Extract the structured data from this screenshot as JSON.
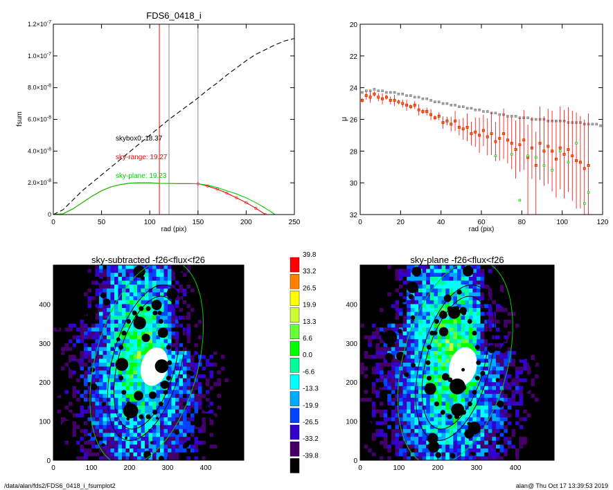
{
  "chart_data": [
    {
      "type": "line",
      "title": "FDS6_0418_i",
      "xlabel": "rad (pix)",
      "ylabel": "fsum",
      "xlim": [
        0,
        250
      ],
      "ylim": [
        0,
        1.2e-07
      ],
      "x_ticks": [
        "0",
        "50",
        "100",
        "150",
        "200",
        "250"
      ],
      "y_ticks": [
        {
          "base": "0",
          "exp": ""
        },
        {
          "base": "2.0×10",
          "exp": "-8"
        },
        {
          "base": "4.0×10",
          "exp": "-8"
        },
        {
          "base": "6.0×10",
          "exp": "-8"
        },
        {
          "base": "8.0×10",
          "exp": "-8"
        },
        {
          "base": "1.0×10",
          "exp": "-7"
        },
        {
          "base": "1.2×10",
          "exp": "-7"
        }
      ],
      "vlines": [
        {
          "x": 110,
          "color": "#ff0000"
        },
        {
          "x": 120,
          "color": "#888888"
        },
        {
          "x": 150,
          "color": "#888888"
        }
      ],
      "annotations": [
        {
          "text": "skybox0: 18.37",
          "color": "#000000"
        },
        {
          "text": "sky-range: 19.27",
          "color": "#ff0000"
        },
        {
          "text": "sky-plane: 19.23",
          "color": "#00cc00"
        }
      ],
      "series": [
        {
          "style": "dashed",
          "color": "#000000",
          "x": [
            0,
            10,
            20,
            30,
            40,
            50,
            60,
            70,
            80,
            90,
            100,
            110,
            120,
            130,
            140,
            150,
            160,
            170,
            180,
            190,
            200,
            210,
            220,
            230,
            240,
            250
          ],
          "y": [
            0,
            3e-09,
            9e-09,
            1.5e-08,
            2e-08,
            2.5e-08,
            3e-08,
            3.5e-08,
            4e-08,
            4.5e-08,
            5e-08,
            5.5e-08,
            6e-08,
            6.45e-08,
            6.9e-08,
            7.35e-08,
            7.85e-08,
            8.3e-08,
            8.8e-08,
            9.25e-08,
            9.7e-08,
            1.01e-07,
            1.04e-07,
            1.07e-07,
            1.095e-07,
            1.11e-07
          ]
        },
        {
          "style": "solid",
          "color": "#ff0000",
          "x": [
            0,
            10,
            20,
            30,
            40,
            50,
            60,
            70,
            80,
            90,
            100,
            110,
            120,
            130,
            140,
            150,
            160,
            170,
            180,
            190,
            200,
            210,
            220
          ],
          "y": [
            0,
            5e-10,
            3.5e-09,
            7.5e-09,
            1.15e-08,
            1.5e-08,
            1.75e-08,
            1.9e-08,
            1.98e-08,
            2e-08,
            2e-08,
            1.97e-08,
            1.96e-08,
            1.95e-08,
            1.95e-08,
            1.94e-08,
            1.8e-08,
            1.6e-08,
            1.35e-08,
            1.05e-08,
            7.5e-09,
            4e-09,
            0.0
          ]
        },
        {
          "style": "solid",
          "color": "#00cc00",
          "x": [
            0,
            10,
            20,
            30,
            40,
            50,
            60,
            70,
            80,
            90,
            100,
            110,
            120,
            130,
            140,
            150,
            160,
            170,
            180,
            190,
            200,
            210,
            220,
            230
          ],
          "y": [
            0,
            5e-10,
            3.5e-09,
            7.5e-09,
            1.15e-08,
            1.5e-08,
            1.75e-08,
            1.9e-08,
            1.98e-08,
            2e-08,
            2e-08,
            1.97e-08,
            1.96e-08,
            1.95e-08,
            1.95e-08,
            1.94e-08,
            1.85e-08,
            1.7e-08,
            1.5e-08,
            1.3e-08,
            1.05e-08,
            7.5e-09,
            4e-09,
            0.0
          ]
        }
      ]
    },
    {
      "type": "scatter",
      "xlabel": "rad (pix)",
      "ylabel": "μ",
      "xlim": [
        0,
        120
      ],
      "ylim": [
        32,
        20
      ],
      "x_ticks": [
        "0",
        "20",
        "40",
        "60",
        "80",
        "100",
        "120"
      ],
      "y_ticks": [
        "20",
        "22",
        "24",
        "26",
        "28",
        "30",
        "32"
      ],
      "series": [
        {
          "color": "#777777",
          "x": [
            1,
            3,
            5,
            7,
            9,
            11,
            13,
            15,
            17,
            19,
            21,
            23,
            25,
            27,
            29,
            31,
            33,
            35,
            37,
            39,
            41,
            43,
            45,
            47,
            49,
            51,
            53,
            55,
            57,
            59,
            61,
            63,
            65,
            67,
            69,
            71,
            73,
            75,
            77,
            79,
            81,
            83,
            85,
            87,
            89,
            91,
            93,
            95,
            97,
            99,
            101,
            103,
            105,
            107,
            109,
            111,
            113,
            115,
            117,
            119
          ],
          "y": [
            24.3,
            24.2,
            24.2,
            24.1,
            24.2,
            24.2,
            24.3,
            24.3,
            24.3,
            24.4,
            24.4,
            24.5,
            24.5,
            24.6,
            24.6,
            24.7,
            24.7,
            24.8,
            24.9,
            24.9,
            25.0,
            25.0,
            25.1,
            25.1,
            25.2,
            25.2,
            25.3,
            25.3,
            25.4,
            25.4,
            25.5,
            25.5,
            25.6,
            25.6,
            25.7,
            25.7,
            25.8,
            25.8,
            25.8,
            25.9,
            25.9,
            25.9,
            26.0,
            26.0,
            26.0,
            26.0,
            26.1,
            26.1,
            26.1,
            26.1,
            26.1,
            26.2,
            26.2,
            26.2,
            26.2,
            26.3,
            26.3,
            26.3,
            26.3,
            26.4
          ]
        },
        {
          "color": "#ff0000",
          "x": [
            1,
            3,
            5,
            7,
            9,
            11,
            13,
            15,
            17,
            19,
            21,
            23,
            25,
            27,
            29,
            31,
            33,
            35,
            37,
            39,
            41,
            43,
            45,
            47,
            49,
            51,
            53,
            55,
            57,
            59,
            61,
            63,
            65,
            67,
            69,
            71,
            73,
            75,
            77,
            79,
            81,
            83,
            85,
            87,
            89,
            91,
            93,
            95,
            97,
            99,
            101,
            103,
            105,
            107,
            109,
            111,
            113
          ],
          "y": [
            24.8,
            24.5,
            24.6,
            24.4,
            24.6,
            24.7,
            24.6,
            24.8,
            24.8,
            24.9,
            25.0,
            25.1,
            25.2,
            25.1,
            25.4,
            25.5,
            25.5,
            25.7,
            25.9,
            25.8,
            26.2,
            26.1,
            26.3,
            26.1,
            26.5,
            26.6,
            26.5,
            26.9,
            26.8,
            27.0,
            26.7,
            27.1,
            26.9,
            27.4,
            27.2,
            26.9,
            27.3,
            27.5,
            27.9,
            27.6,
            27.3,
            28.4,
            27.8,
            28.9,
            27.5,
            28.0,
            27.7,
            28.0,
            28.5,
            27.8,
            28.2,
            27.9,
            28.3,
            28.6,
            28.7,
            29.1,
            28.9
          ]
        },
        {
          "color": "#00cc00",
          "x": [
            67,
            75,
            79,
            83,
            87,
            91,
            95,
            99,
            103,
            107,
            111,
            113
          ],
          "y": [
            28.3,
            28.2,
            31.1,
            28.3,
            28.4,
            28.9,
            29.2,
            28.0,
            28.7,
            27.5,
            31.3,
            30.6
          ]
        }
      ]
    },
    {
      "type": "heatmap",
      "title": "sky-subtracted -f26<flux<f26",
      "xlim": [
        0,
        500
      ],
      "ylim": [
        0,
        500
      ],
      "x_ticks": [
        "0",
        "100",
        "200",
        "300",
        "400"
      ],
      "y_ticks": [
        "0",
        "100",
        "200",
        "300",
        "400"
      ]
    },
    {
      "type": "heatmap",
      "title": "sky-plane -f26<flux<f26",
      "xlim": [
        0,
        500
      ],
      "ylim": [
        0,
        500
      ],
      "x_ticks": [
        "0",
        "100",
        "200",
        "300",
        "400"
      ],
      "y_ticks": [
        "0",
        "100",
        "200",
        "300",
        "400"
      ]
    }
  ],
  "colorbar": {
    "labels": [
      "39.8",
      "33.2",
      "26.5",
      "19.9",
      "13.3",
      "6.6",
      "0.0",
      "-6.6",
      "-13.3",
      "-19.9",
      "-26.5",
      "-33.2",
      "-39.8"
    ],
    "colors": [
      "#ff0000",
      "#ff8000",
      "#ffff00",
      "#ccff33",
      "#66ff33",
      "#00ff00",
      "#00ff99",
      "#00ffff",
      "#00aaff",
      "#0044ff",
      "#3300cc",
      "#440066",
      "#000000"
    ]
  },
  "footer": {
    "left": "/data/alan/fds2/FDS6_0418_i_fsumplot2",
    "right": "alan@  Thu Oct 17 13:39:53 2019"
  }
}
